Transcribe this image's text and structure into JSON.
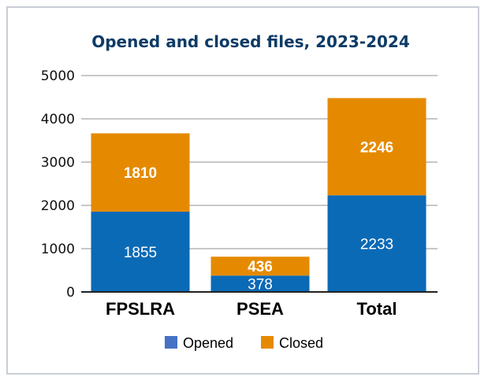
{
  "chart_data": {
    "type": "bar",
    "stacked": true,
    "title": "Opened and closed files, 2023-2024",
    "categories": [
      "FPSLRA",
      "PSEA",
      "Total"
    ],
    "series": [
      {
        "name": "Opened",
        "values": [
          1855,
          378,
          2233
        ],
        "color": "#0a6ab6"
      },
      {
        "name": "Closed",
        "values": [
          1810,
          436,
          2246
        ],
        "color": "#e58a00"
      }
    ],
    "legend_colors": [
      "#4472c4",
      "#e58a00"
    ],
    "ylim": [
      0,
      5000
    ],
    "yticks": [
      0,
      1000,
      2000,
      3000,
      4000,
      5000
    ],
    "grid": true,
    "legend": "bottom",
    "title_color": "#0d3b66"
  }
}
